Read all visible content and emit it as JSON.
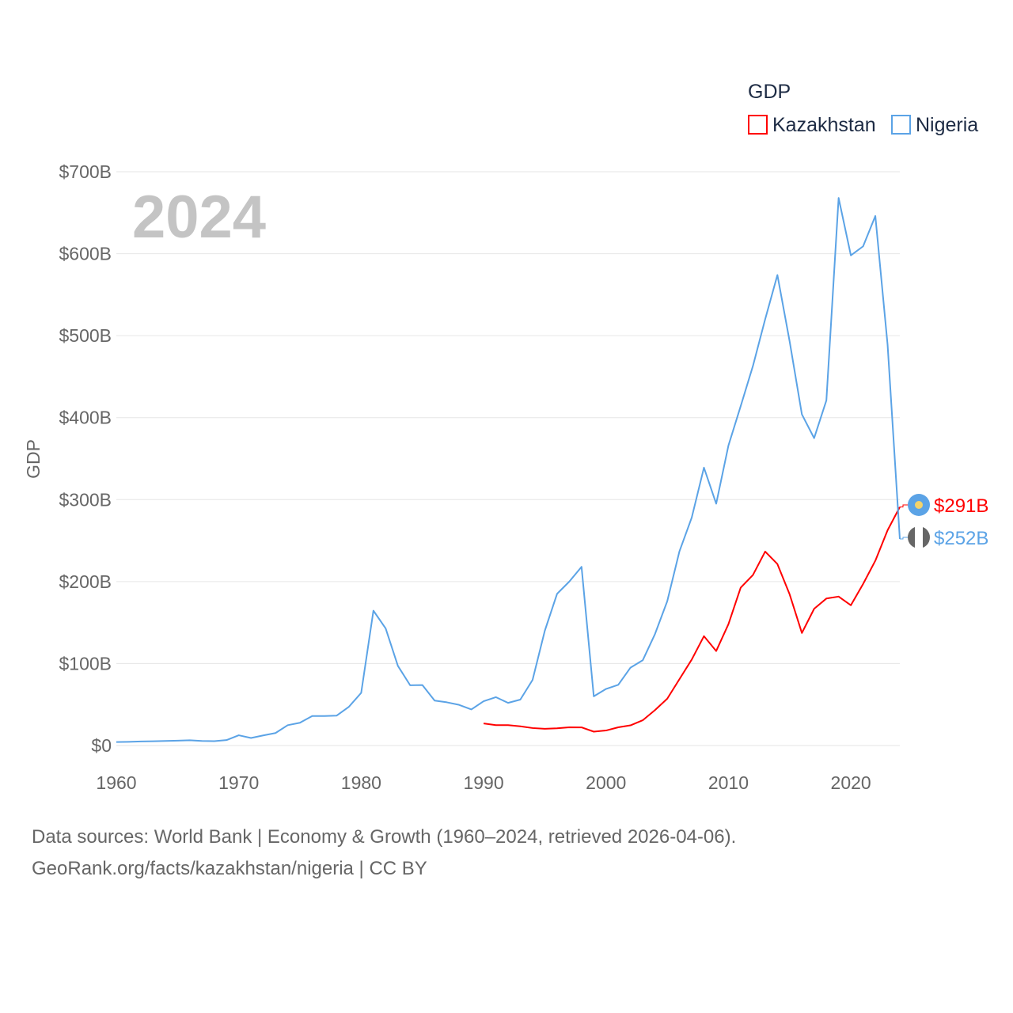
{
  "chart_data": {
    "type": "line",
    "title": "GDP",
    "ylabel": "GDP",
    "xlabel": "",
    "current_year_label": "2024",
    "xlim": [
      1960,
      2024
    ],
    "ylim": [
      0,
      700
    ],
    "xticks": [
      "1960",
      "1970",
      "1980",
      "1990",
      "2000",
      "2010",
      "2020"
    ],
    "yticks": [
      "$0",
      "$100B",
      "$200B",
      "$300B",
      "$400B",
      "$500B",
      "$600B",
      "$700B"
    ],
    "grid": true,
    "legend_placement": "top-right",
    "series": [
      {
        "name": "Kazakhstan",
        "color": "#ff0000",
        "start_year": 1990,
        "end_label": "$291B",
        "values": [
          26.9,
          24.9,
          24.9,
          23.4,
          21.3,
          20.4,
          21.0,
          22.2,
          22.1,
          16.9,
          18.3,
          22.2,
          24.6,
          30.8,
          43.2,
          57.1,
          81.0,
          104.8,
          133.4,
          115.3,
          148.0,
          192.6,
          208.0,
          236.6,
          221.4,
          184.4,
          137.3,
          166.8,
          179.3,
          181.7,
          171.1,
          197.1,
          225.5,
          262.6,
          291.0
        ]
      },
      {
        "name": "Nigeria",
        "color": "#5ba3e6",
        "start_year": 1960,
        "end_label": "$252B",
        "values": [
          4.2,
          4.5,
          4.9,
          5.2,
          5.6,
          5.9,
          6.4,
          5.5,
          5.3,
          6.6,
          12.5,
          9.2,
          12.3,
          15.2,
          24.8,
          27.8,
          36.0,
          36.0,
          36.5,
          47.3,
          64.2,
          164.5,
          142.8,
          97.1,
          73.5,
          73.7,
          54.8,
          52.7,
          49.6,
          44.0,
          54.0,
          59.0,
          52.0,
          56.0,
          80.0,
          140.0,
          185.0,
          200.0,
          218.0,
          60.0,
          69.0,
          74.0,
          95.0,
          104.0,
          136.0,
          176.0,
          237.0,
          278.0,
          339.0,
          295.0,
          366.0,
          414.0,
          463.0,
          520.0,
          574.0,
          493.0,
          404.0,
          375.0,
          421.0,
          668.0,
          598.0,
          609.0,
          646.0,
          489.0,
          252.0
        ]
      }
    ]
  },
  "footer": {
    "line1": "Data sources: World Bank | Economy & Growth (1960–2024, retrieved 2026-04-06).",
    "line2": "GeoRank.org/facts/kazakhstan/nigeria | CC BY"
  }
}
